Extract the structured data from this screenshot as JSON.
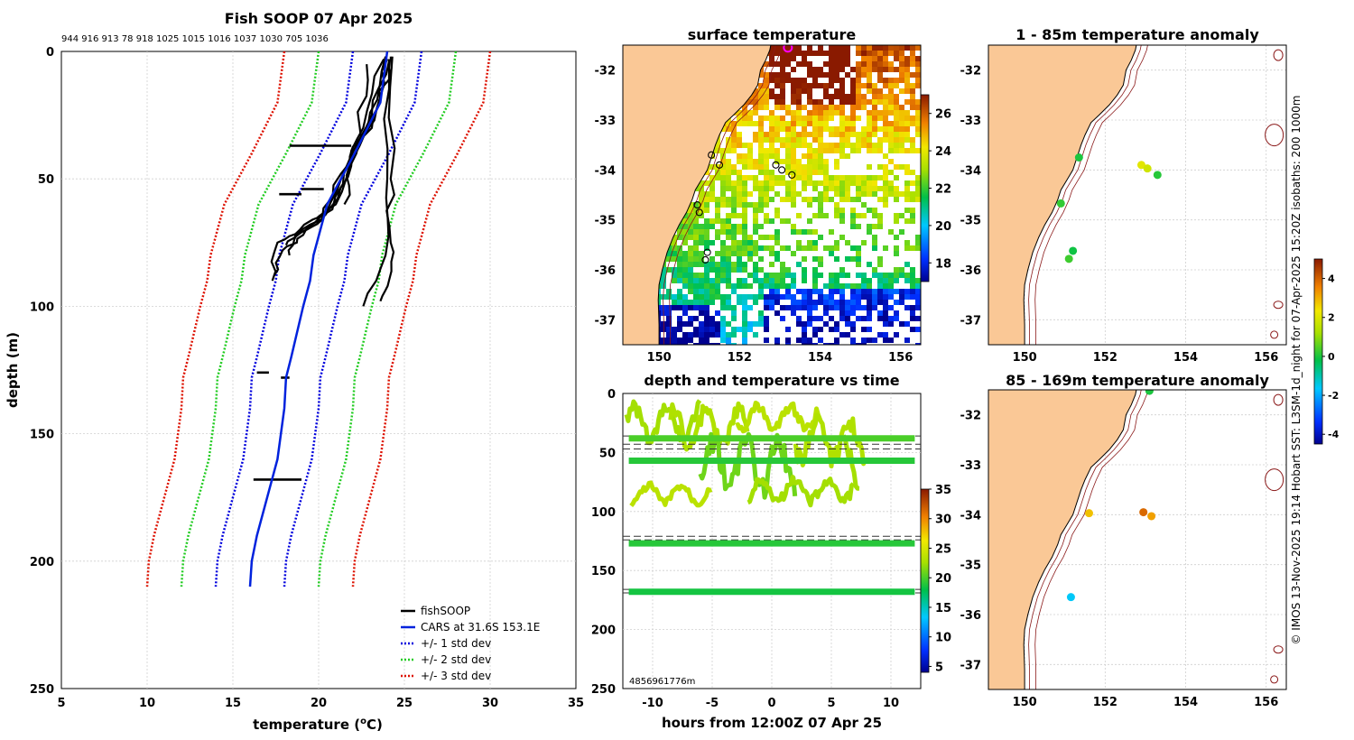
{
  "colors": {
    "land": "#fac896",
    "fish": "#000000",
    "cars": "#0022dd",
    "std1": "#0000dd",
    "std2": "#22cc22",
    "std3": "#dd1100",
    "grid": "#cfcfcf",
    "isobath": "#8b1a1a"
  },
  "credit": "© IMOS 13-Nov-2025 19:14 Hobart SST: L3SM-1d_night for 07-Apr-2025 15:20Z isobaths: 200  1000m",
  "chart_data": [
    {
      "id": "profile",
      "type": "line",
      "title": "Fish SOOP 07 Apr 2025",
      "top_labels": "944 916 913 78 918 1025 1015 1016 1037 1030 705 1036",
      "xlabel": "temperature (",
      "xlabel_sup": "o",
      "xlabel_tail": "C)",
      "ylabel": "depth (m)",
      "xlim": [
        5,
        35
      ],
      "ylim": [
        0,
        250
      ],
      "xticks": [
        "5",
        "10",
        "15",
        "20",
        "25",
        "30",
        "35"
      ],
      "yticks": [
        "0",
        "50",
        "100",
        "150",
        "200",
        "250"
      ],
      "legend": [
        "fishSOOP",
        "CARS at 31.6S 153.1E",
        "+/- 1 std dev",
        "+/- 2 std dev",
        "+/- 3 std dev"
      ],
      "cars": {
        "depth": [
          0,
          20,
          40,
          60,
          80,
          90,
          100,
          120,
          128,
          140,
          160,
          175,
          190,
          200,
          210
        ],
        "temp": [
          24.0,
          23.6,
          22.1,
          20.5,
          19.7,
          19.5,
          19.1,
          18.4,
          18.1,
          18.0,
          17.6,
          17.0,
          16.4,
          16.1,
          16.0
        ]
      },
      "std_offsets": [
        2,
        4,
        6
      ],
      "fish_profiles": [
        {
          "depth": [
            2,
            20,
            40,
            60,
            70,
            75,
            90
          ],
          "temp": [
            24.2,
            23.6,
            22.2,
            21.0,
            19.3,
            17.6,
            17.3
          ]
        },
        {
          "depth": [
            3,
            22,
            42,
            62,
            72,
            78,
            88
          ],
          "temp": [
            24.0,
            23.4,
            22.0,
            20.8,
            19.1,
            17.9,
            17.4
          ]
        },
        {
          "depth": [
            2,
            25,
            45,
            62,
            70,
            76
          ],
          "temp": [
            23.9,
            23.1,
            21.9,
            20.6,
            18.9,
            18.1
          ]
        },
        {
          "depth": [
            4,
            24,
            44,
            64,
            72,
            80
          ],
          "temp": [
            24.1,
            23.0,
            21.7,
            20.4,
            18.7,
            18.3
          ]
        },
        {
          "depth": [
            3,
            30,
            48,
            66,
            73
          ],
          "temp": [
            23.8,
            22.6,
            21.3,
            20.2,
            18.6
          ]
        },
        {
          "depth": [
            2,
            50,
            75,
            90,
            98
          ],
          "temp": [
            24.3,
            24.2,
            24.2,
            24.1,
            23.6
          ]
        },
        {
          "depth": [
            3,
            50,
            80,
            100
          ],
          "temp": [
            24.1,
            24.0,
            23.9,
            22.6
          ]
        },
        {
          "depth": [
            5,
            30,
            45,
            60
          ],
          "temp": [
            22.8,
            22.4,
            21.8,
            21.5
          ]
        }
      ],
      "fish_spikes": [
        {
          "depth": 37,
          "t0": 18.3,
          "t1": 21.9
        },
        {
          "depth": 56,
          "t0": 17.7,
          "t1": 19.0
        },
        {
          "depth": 54,
          "t0": 19.0,
          "t1": 20.3
        },
        {
          "depth": 126,
          "t0": 16.4,
          "t1": 17.1
        },
        {
          "depth": 128,
          "t0": 17.8,
          "t1": 18.3
        },
        {
          "depth": 168,
          "t0": 16.2,
          "t1": 19.0
        }
      ]
    },
    {
      "id": "sst",
      "type": "heatmap",
      "title": "surface temperature",
      "xlim": [
        149.1,
        156.5
      ],
      "ylim": [
        -37.5,
        -31.5
      ],
      "xticks": [
        "150",
        "152",
        "154",
        "156"
      ],
      "yticks": [
        "-32",
        "-33",
        "-34",
        "-35",
        "-36",
        "-37"
      ],
      "colorbar": {
        "ticks": [
          "18",
          "20",
          "22",
          "24",
          "26"
        ],
        "range": [
          17,
          27
        ]
      },
      "sites": [
        [
          151.3,
          -33.7
        ],
        [
          151.5,
          -33.9
        ],
        [
          152.9,
          -33.9
        ],
        [
          153.05,
          -34.0
        ],
        [
          153.3,
          -34.1
        ],
        [
          150.95,
          -34.7
        ],
        [
          151.0,
          -34.85
        ],
        [
          151.2,
          -35.65
        ],
        [
          151.15,
          -35.8
        ]
      ],
      "vessel": [
        153.2,
        -31.55
      ]
    },
    {
      "id": "depthtime",
      "type": "scatter",
      "title": "depth and temperature vs time",
      "xlabel": "hours from 12:00Z 07 Apr 25",
      "xlim": [
        -12.5,
        12.5
      ],
      "ylim": [
        0,
        250
      ],
      "xticks": [
        "-10",
        "-5",
        "0",
        "5",
        "10"
      ],
      "yticks": [
        "0",
        "50",
        "100",
        "150",
        "200",
        "250"
      ],
      "colorbar": {
        "ticks": [
          "5",
          "10",
          "15",
          "20",
          "25",
          "30",
          "35"
        ],
        "range": [
          4,
          35
        ]
      },
      "dashed_depths": [
        36,
        43,
        47,
        121,
        124,
        166,
        169
      ],
      "bands": [
        {
          "depth": 38,
          "temp": 20
        },
        {
          "depth": 57,
          "temp": 19
        },
        {
          "depth": 127,
          "temp": 19
        },
        {
          "depth": 168,
          "temp": 18.5
        }
      ],
      "ids_label": "4856961776m"
    },
    {
      "id": "anom1",
      "type": "scatter",
      "title": "1 - 85m temperature anomaly",
      "xlim": [
        149.1,
        156.5
      ],
      "ylim": [
        -37.5,
        -31.5
      ],
      "xticks": [
        "150",
        "152",
        "154",
        "156"
      ],
      "yticks": [
        "-32",
        "-33",
        "-34",
        "-35",
        "-36",
        "-37"
      ],
      "points": [
        {
          "lon": 151.35,
          "lat": -33.75,
          "anom": 0
        },
        {
          "lon": 152.9,
          "lat": -33.9,
          "anom": 2.1
        },
        {
          "lon": 153.05,
          "lat": -33.97,
          "anom": 1.8
        },
        {
          "lon": 153.3,
          "lat": -34.1,
          "anom": 0.1
        },
        {
          "lon": 150.9,
          "lat": -34.67,
          "anom": 0.2
        },
        {
          "lon": 151.2,
          "lat": -35.62,
          "anom": -0.1
        },
        {
          "lon": 151.1,
          "lat": -35.78,
          "anom": 0.3
        }
      ]
    },
    {
      "id": "anom2",
      "type": "scatter",
      "title": "85 - 169m temperature anomaly",
      "xlim": [
        149.1,
        156.5
      ],
      "ylim": [
        -37.5,
        -31.5
      ],
      "xticks": [
        "150",
        "152",
        "154",
        "156"
      ],
      "yticks": [
        "-32",
        "-33",
        "-34",
        "-35",
        "-36",
        "-37"
      ],
      "colorbar": {
        "ticks": [
          "4",
          "2",
          "0",
          "-2",
          "-4"
        ],
        "range": [
          -4.5,
          5
        ]
      },
      "points": [
        {
          "lon": 153.1,
          "lat": -31.52,
          "anom": 0
        },
        {
          "lon": 151.6,
          "lat": -33.97,
          "anom": 2.8
        },
        {
          "lon": 152.95,
          "lat": -33.95,
          "anom": 3.9
        },
        {
          "lon": 153.15,
          "lat": -34.03,
          "anom": 3.2
        },
        {
          "lon": 151.15,
          "lat": -35.65,
          "anom": -1.6
        }
      ]
    }
  ]
}
